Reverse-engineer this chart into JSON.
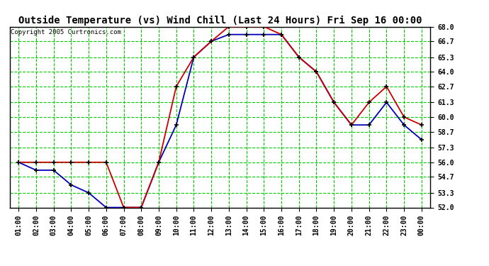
{
  "title": "Outside Temperature (vs) Wind Chill (Last 24 Hours) Fri Sep 16 00:00",
  "copyright": "Copyright 2005 Curtronics.com",
  "hours": [
    "01:00",
    "02:00",
    "03:00",
    "04:00",
    "05:00",
    "06:00",
    "07:00",
    "08:00",
    "09:00",
    "10:00",
    "11:00",
    "12:00",
    "13:00",
    "14:00",
    "15:00",
    "16:00",
    "17:00",
    "18:00",
    "19:00",
    "20:00",
    "21:00",
    "22:00",
    "23:00",
    "00:00"
  ],
  "temp_blue": [
    56.0,
    55.3,
    55.3,
    54.0,
    53.3,
    52.0,
    52.0,
    52.0,
    56.0,
    59.3,
    65.3,
    66.7,
    67.3,
    67.3,
    67.3,
    67.3,
    65.3,
    64.0,
    61.3,
    59.3,
    59.3,
    61.3,
    59.3,
    58.0
  ],
  "temp_red": [
    56.0,
    56.0,
    56.0,
    56.0,
    56.0,
    56.0,
    52.0,
    52.0,
    56.0,
    62.7,
    65.3,
    66.7,
    68.0,
    68.0,
    68.0,
    67.3,
    65.3,
    64.0,
    61.3,
    59.3,
    61.3,
    62.7,
    60.0,
    59.3
  ],
  "ylim_min": 52.0,
  "ylim_max": 68.0,
  "yticks": [
    52.0,
    53.3,
    54.7,
    56.0,
    57.3,
    58.7,
    60.0,
    61.3,
    62.7,
    64.0,
    65.3,
    66.7,
    68.0
  ],
  "ytick_labels": [
    "52.0",
    "53.3",
    "54.7",
    "56.0",
    "57.3",
    "58.7",
    "60.0",
    "61.3",
    "62.7",
    "64.0",
    "65.3",
    "66.7",
    "68.0"
  ],
  "bg_color": "#ffffff",
  "plot_bg": "#ffffff",
  "grid_color": "#00cc00",
  "blue_color": "#0000bb",
  "red_color": "#cc0000",
  "title_fontsize": 10,
  "tick_fontsize": 7,
  "copyright_fontsize": 6.5
}
